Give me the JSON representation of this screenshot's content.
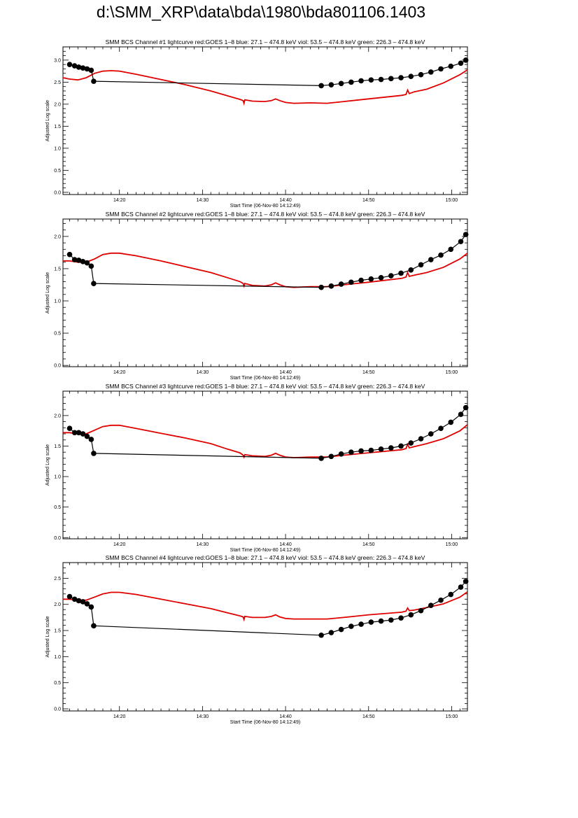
{
  "page": {
    "title": "d:\\SMM_XRP\\data\\bda\\1980\\bda801106.1403"
  },
  "colors": {
    "goes": "#e00000",
    "bcs": "#000000",
    "axes": "#000000"
  },
  "chart_data": [
    {
      "type": "line",
      "title": "SMM BCS Channel #1 lightcurve  red:GOES 1–8  blue: 27.1 – 474.8 keV  viol: 53.5 – 474.8 keV  green: 226.3 – 474.8 keV",
      "xlabel": "Start Time (06-Nov-80 14:12:49)",
      "ylabel": "Adjusted Log scale",
      "xlim": [
        13.2,
        61.9
      ],
      "ylim": [
        -0.05,
        3.3
      ],
      "xticks": [
        20,
        30,
        40,
        50,
        60
      ],
      "xtick_labels": [
        "14:20",
        "14:30",
        "14:40",
        "14:50",
        "15:00"
      ],
      "yticks": [
        0,
        0.5,
        1.0,
        1.5,
        2.0,
        2.5,
        3.0
      ],
      "ytick_labels": [
        "0.0",
        "0.5",
        "1.0",
        "1.5",
        "2.0",
        "2.5",
        "3.0"
      ],
      "grid": false,
      "series": [
        {
          "name": "GOES 1–8",
          "color": "#e00000",
          "style": "line",
          "x": [
            13.2,
            14.0,
            15.0,
            16.0,
            17.0,
            18.0,
            19.0,
            20.0,
            22.0,
            25.0,
            28.0,
            31.0,
            33.0,
            34.5,
            34.9,
            35.0,
            35.1,
            36.0,
            37.5,
            38.3,
            38.8,
            39.3,
            40.0,
            41.0,
            43.0,
            45.0,
            47.0,
            50.0,
            54.0,
            54.5,
            54.7,
            54.9,
            55.5,
            57.0,
            59.0,
            61.0,
            61.9
          ],
          "y": [
            2.6,
            2.57,
            2.55,
            2.6,
            2.7,
            2.75,
            2.76,
            2.75,
            2.68,
            2.56,
            2.44,
            2.3,
            2.19,
            2.11,
            2.08,
            2.02,
            2.1,
            2.07,
            2.06,
            2.08,
            2.12,
            2.08,
            2.04,
            2.02,
            2.03,
            2.02,
            2.06,
            2.12,
            2.2,
            2.22,
            2.32,
            2.24,
            2.28,
            2.34,
            2.48,
            2.67,
            2.78
          ]
        },
        {
          "name": "",
          "color": "#000000",
          "style": "line+markers",
          "x": [
            14.0,
            14.6,
            15.1,
            15.6,
            16.1,
            16.6,
            16.9,
            44.3,
            45.5,
            46.7,
            47.9,
            49.1,
            50.3,
            51.5,
            52.7,
            53.9,
            55.1,
            56.3,
            57.5,
            58.7,
            59.9,
            61.1,
            61.7
          ],
          "y": [
            2.9,
            2.87,
            2.84,
            2.82,
            2.8,
            2.77,
            2.52,
            2.42,
            2.44,
            2.47,
            2.5,
            2.53,
            2.55,
            2.56,
            2.58,
            2.6,
            2.63,
            2.67,
            2.73,
            2.8,
            2.86,
            2.93,
            3.0
          ]
        }
      ]
    },
    {
      "type": "line",
      "title": "SMM BCS Channel #2 lightcurve  red:GOES 1–8  blue: 27.1 – 474.8 keV  viol: 53.5 – 474.8 keV  green: 226.3 – 474.8 keV",
      "xlabel": "Start Time (06-Nov-80 14:12:49)",
      "ylabel": "Adjusted Log scale",
      "xlim": [
        13.2,
        61.9
      ],
      "ylim": [
        -0.02,
        2.27
      ],
      "xticks": [
        20,
        30,
        40,
        50,
        60
      ],
      "xtick_labels": [
        "14:20",
        "14:30",
        "14:40",
        "14:50",
        "15:00"
      ],
      "yticks": [
        0,
        0.5,
        1.0,
        1.5,
        2.0
      ],
      "ytick_labels": [
        "0.0",
        "0.5",
        "1.0",
        "1.5",
        "2.0"
      ],
      "grid": false,
      "series": [
        {
          "name": "GOES 1–8",
          "color": "#e00000",
          "style": "line",
          "x": [
            13.2,
            14.0,
            15.0,
            16.0,
            17.0,
            18.0,
            19.0,
            20.0,
            22.0,
            25.0,
            28.0,
            31.0,
            33.0,
            34.5,
            34.9,
            35.0,
            35.1,
            36.0,
            37.5,
            38.3,
            38.8,
            39.3,
            40.0,
            41.0,
            43.0,
            45.0,
            47.0,
            50.0,
            54.0,
            54.5,
            54.7,
            54.9,
            55.5,
            57.0,
            59.0,
            61.0,
            61.9
          ],
          "y": [
            1.62,
            1.62,
            1.6,
            1.6,
            1.65,
            1.72,
            1.74,
            1.74,
            1.7,
            1.62,
            1.53,
            1.44,
            1.36,
            1.3,
            1.27,
            1.23,
            1.27,
            1.24,
            1.23,
            1.25,
            1.28,
            1.25,
            1.22,
            1.21,
            1.22,
            1.22,
            1.25,
            1.29,
            1.35,
            1.37,
            1.44,
            1.38,
            1.4,
            1.44,
            1.52,
            1.65,
            1.74
          ]
        },
        {
          "name": "",
          "color": "#000000",
          "style": "line+markers",
          "x": [
            14.0,
            14.6,
            15.1,
            15.6,
            16.1,
            16.6,
            16.9,
            44.3,
            45.5,
            46.7,
            47.9,
            49.1,
            50.3,
            51.5,
            52.7,
            53.9,
            55.1,
            56.3,
            57.5,
            58.7,
            59.9,
            61.1,
            61.7
          ],
          "y": [
            1.72,
            1.64,
            1.63,
            1.61,
            1.59,
            1.54,
            1.27,
            1.21,
            1.23,
            1.26,
            1.29,
            1.32,
            1.34,
            1.36,
            1.39,
            1.43,
            1.48,
            1.56,
            1.64,
            1.71,
            1.8,
            1.92,
            2.03
          ]
        }
      ]
    },
    {
      "type": "line",
      "title": "SMM BCS Channel #3 lightcurve  red:GOES 1–8  blue: 27.1 – 474.8 keV  viol: 53.5 – 474.8 keV  green: 226.3 – 474.8 keV",
      "xlabel": "Start Time (06-Nov-80 14:12:49)",
      "ylabel": "Adjusted Log scale",
      "xlim": [
        13.2,
        61.9
      ],
      "ylim": [
        -0.02,
        2.4
      ],
      "xticks": [
        20,
        30,
        40,
        50,
        60
      ],
      "xtick_labels": [
        "14:20",
        "14:30",
        "14:40",
        "14:50",
        "15:00"
      ],
      "yticks": [
        0,
        0.5,
        1.0,
        1.5,
        2.0
      ],
      "ytick_labels": [
        "0.0",
        "0.5",
        "1.0",
        "1.5",
        "2.0"
      ],
      "grid": false,
      "series": [
        {
          "name": "GOES 1–8",
          "color": "#e00000",
          "style": "line",
          "x": [
            13.2,
            14.0,
            15.0,
            16.0,
            17.0,
            18.0,
            19.0,
            20.0,
            22.0,
            25.0,
            28.0,
            31.0,
            33.0,
            34.5,
            34.9,
            35.0,
            35.1,
            36.0,
            37.5,
            38.3,
            38.8,
            39.3,
            40.0,
            41.0,
            43.0,
            45.0,
            47.0,
            50.0,
            54.0,
            54.5,
            54.7,
            54.9,
            55.5,
            57.0,
            59.0,
            61.0,
            61.9
          ],
          "y": [
            1.72,
            1.72,
            1.7,
            1.7,
            1.76,
            1.82,
            1.84,
            1.84,
            1.79,
            1.71,
            1.63,
            1.54,
            1.45,
            1.39,
            1.35,
            1.32,
            1.36,
            1.34,
            1.33,
            1.35,
            1.38,
            1.35,
            1.32,
            1.31,
            1.32,
            1.32,
            1.35,
            1.39,
            1.44,
            1.46,
            1.53,
            1.47,
            1.49,
            1.54,
            1.62,
            1.75,
            1.85
          ]
        },
        {
          "name": "",
          "color": "#000000",
          "style": "line+markers",
          "x": [
            14.0,
            14.6,
            15.1,
            15.6,
            16.1,
            16.6,
            16.9,
            44.3,
            45.5,
            46.7,
            47.9,
            49.1,
            50.3,
            51.5,
            52.7,
            53.9,
            55.1,
            56.3,
            57.5,
            58.7,
            59.9,
            61.1,
            61.7
          ],
          "y": [
            1.79,
            1.72,
            1.72,
            1.7,
            1.66,
            1.61,
            1.38,
            1.3,
            1.33,
            1.37,
            1.4,
            1.42,
            1.43,
            1.45,
            1.47,
            1.5,
            1.55,
            1.62,
            1.7,
            1.79,
            1.89,
            2.02,
            2.13
          ]
        }
      ]
    },
    {
      "type": "line",
      "title": "SMM BCS Channel #4 lightcurve  red:GOES 1–8  blue: 27.1 – 474.8 keV  viol: 53.5 – 474.8 keV  green: 226.3 – 474.8 keV",
      "xlabel": "Start Time (06-Nov-80 14:12:49)",
      "ylabel": "Adjusted Log scale",
      "xlim": [
        13.2,
        61.9
      ],
      "ylim": [
        -0.04,
        2.8
      ],
      "xticks": [
        20,
        30,
        40,
        50,
        60
      ],
      "xtick_labels": [
        "14:20",
        "14:30",
        "14:40",
        "14:50",
        "15:00"
      ],
      "yticks": [
        0,
        0.5,
        1.0,
        1.5,
        2.0,
        2.5
      ],
      "ytick_labels": [
        "0.0",
        "0.5",
        "1.0",
        "1.5",
        "2.0",
        "2.5"
      ],
      "grid": false,
      "series": [
        {
          "name": "GOES 1–8",
          "color": "#e00000",
          "style": "line",
          "x": [
            13.2,
            14.0,
            15.0,
            16.0,
            17.0,
            18.0,
            19.0,
            20.0,
            22.0,
            25.0,
            28.0,
            31.0,
            33.0,
            34.5,
            34.9,
            35.0,
            35.1,
            36.0,
            37.5,
            38.3,
            38.8,
            39.3,
            40.0,
            41.0,
            43.0,
            45.0,
            47.0,
            50.0,
            54.0,
            54.5,
            54.7,
            54.9,
            55.5,
            57.0,
            59.0,
            61.0,
            61.9
          ],
          "y": [
            2.1,
            2.1,
            2.08,
            2.08,
            2.14,
            2.2,
            2.23,
            2.23,
            2.19,
            2.1,
            2.01,
            1.92,
            1.84,
            1.78,
            1.76,
            1.71,
            1.77,
            1.75,
            1.75,
            1.77,
            1.8,
            1.76,
            1.73,
            1.72,
            1.72,
            1.72,
            1.75,
            1.8,
            1.85,
            1.87,
            1.93,
            1.88,
            1.89,
            1.94,
            2.01,
            2.14,
            2.24
          ]
        },
        {
          "name": "",
          "color": "#000000",
          "style": "line+markers",
          "x": [
            14.0,
            14.6,
            15.1,
            15.6,
            16.1,
            16.6,
            16.9,
            44.3,
            45.5,
            46.7,
            47.9,
            49.1,
            50.3,
            51.5,
            52.7,
            53.9,
            55.1,
            56.3,
            57.5,
            58.7,
            59.9,
            61.1,
            61.7
          ],
          "y": [
            2.15,
            2.1,
            2.07,
            2.05,
            2.01,
            1.95,
            1.59,
            1.41,
            1.46,
            1.52,
            1.58,
            1.62,
            1.66,
            1.68,
            1.7,
            1.74,
            1.8,
            1.88,
            1.98,
            2.08,
            2.19,
            2.33,
            2.44
          ]
        }
      ]
    }
  ]
}
